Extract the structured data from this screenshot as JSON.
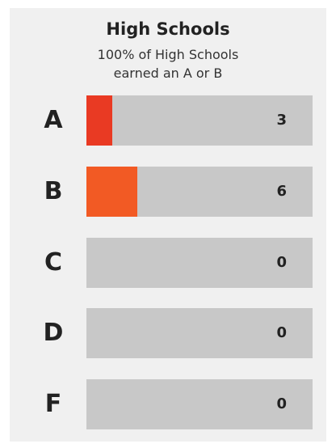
{
  "chart_data": {
    "type": "hbar",
    "title": "High Schools",
    "subtitle": "100% of High Schools earned an A or B",
    "categories": [
      "A",
      "B",
      "C",
      "D",
      "F"
    ],
    "values": [
      3,
      6,
      0,
      0,
      0
    ],
    "colors": [
      "#e93a23",
      "#f25a24",
      null,
      null,
      null
    ],
    "track_color": "#c8c8c8",
    "xlim": [
      0,
      26.5
    ]
  }
}
